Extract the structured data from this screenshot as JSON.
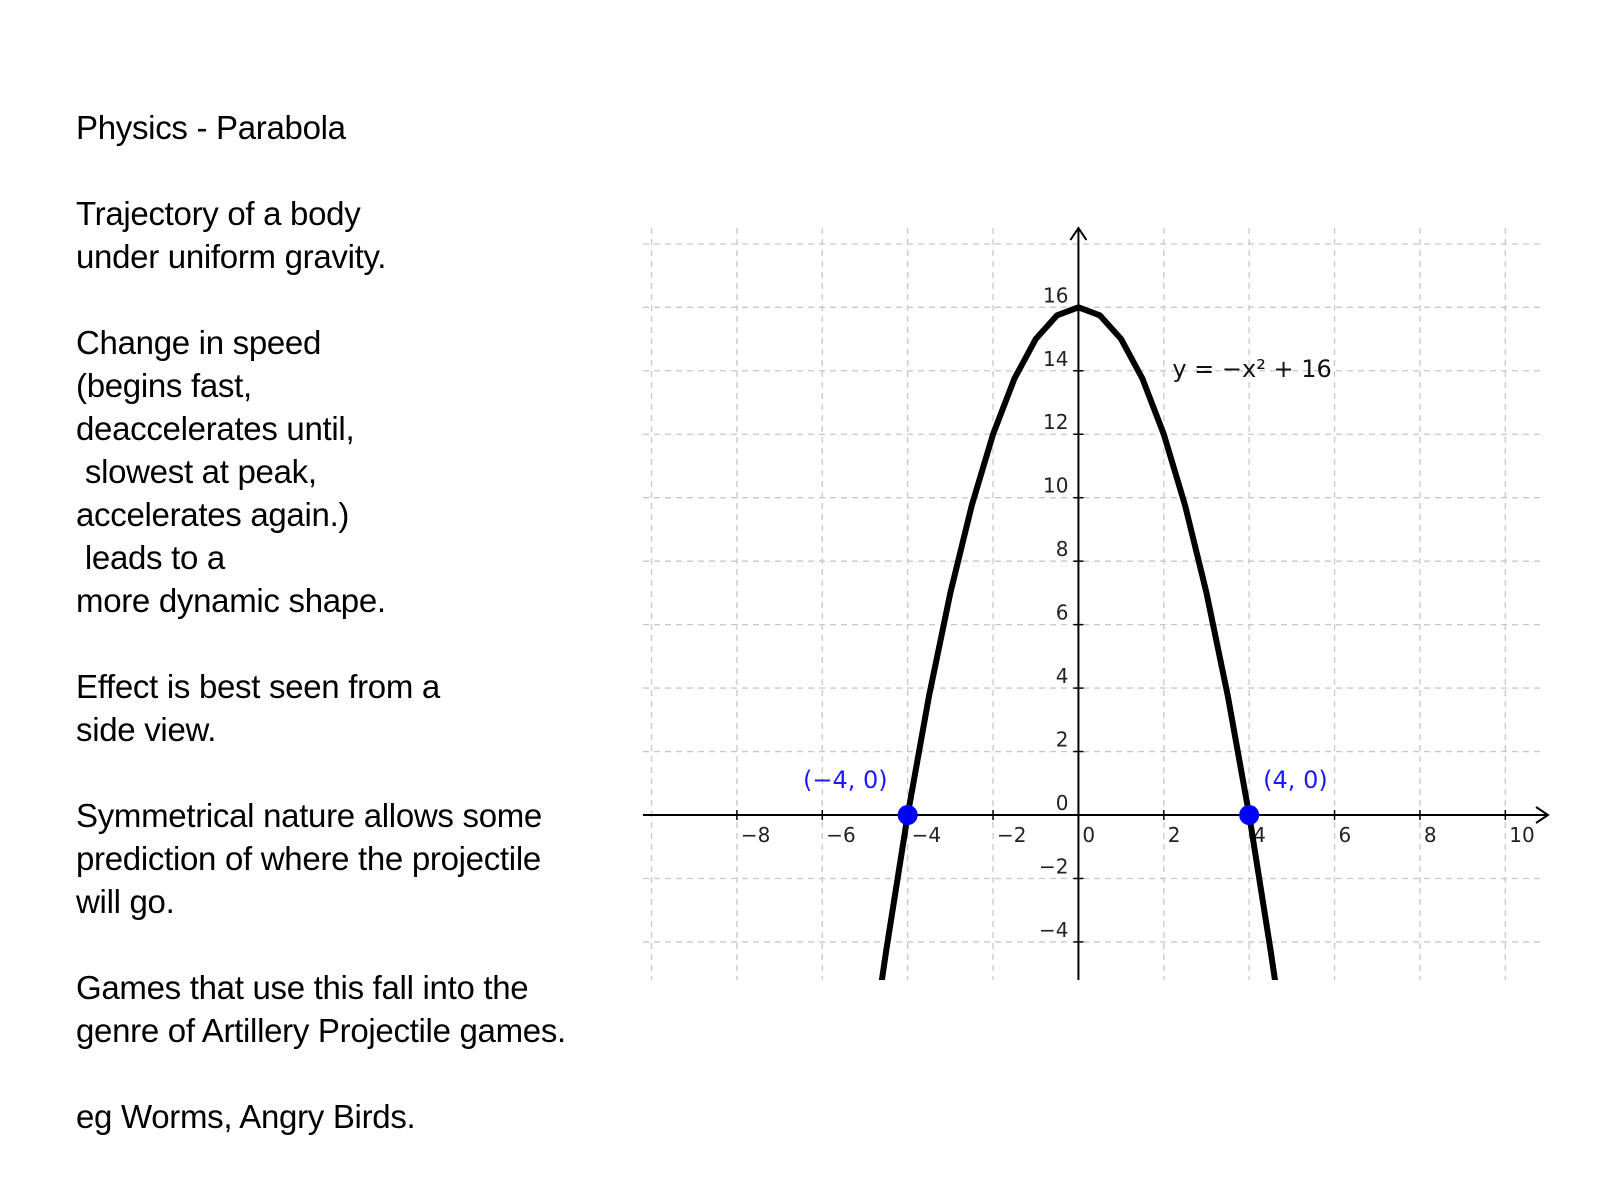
{
  "slide": {
    "title": "Physics - Parabola",
    "paragraphs": [
      [
        "Trajectory of a body",
        "under uniform gravity."
      ],
      [
        "Change in speed",
        "(begins fast,",
        "deaccelerates until,",
        " slowest at peak,",
        "accelerates again.)",
        " leads to a",
        "more dynamic shape."
      ],
      [
        "Effect is best seen from a",
        "side view."
      ],
      [
        "Symmetrical nature allows some",
        "prediction of where the projectile",
        "will go."
      ],
      [
        "Games that use this fall into the",
        "genre of Artillery Projectile games."
      ],
      [
        "eg Worms, Angry Birds."
      ]
    ]
  },
  "chart_data": {
    "type": "line",
    "title": "",
    "xlabel": "",
    "ylabel": "",
    "xlim": [
      -10.2,
      11
    ],
    "ylim": [
      -5.2,
      18.5
    ],
    "x_ticks": [
      -8,
      -6,
      -4,
      -2,
      0,
      2,
      4,
      6,
      8,
      10
    ],
    "y_ticks": [
      -4,
      -2,
      0,
      2,
      4,
      6,
      8,
      10,
      12,
      14,
      16
    ],
    "grid": true,
    "grid_color": "#c8c8c8",
    "curve_color": "#000000",
    "point_color": "#0000ff",
    "label_color": "#1a1aff",
    "series": [
      {
        "name": "",
        "x": [
          -4.64,
          -4.5,
          -4,
          -3.5,
          -3,
          -2.5,
          -2,
          -1.5,
          -1,
          -0.5,
          0,
          0.5,
          1,
          1.5,
          2,
          2.5,
          3,
          3.5,
          4,
          4.5,
          4.64
        ],
        "y": [
          -5.53,
          -4.25,
          0,
          3.75,
          7,
          9.75,
          12,
          13.75,
          15,
          15.75,
          16,
          15.75,
          15,
          13.75,
          12,
          9.75,
          7,
          3.75,
          0,
          -4.25,
          -5.53
        ]
      }
    ],
    "equation_label": "y = −x² + 16",
    "points": [
      {
        "x": -4,
        "y": 0,
        "label": "(−4, 0)"
      },
      {
        "x": 4,
        "y": 0,
        "label": "(4, 0)"
      }
    ]
  }
}
